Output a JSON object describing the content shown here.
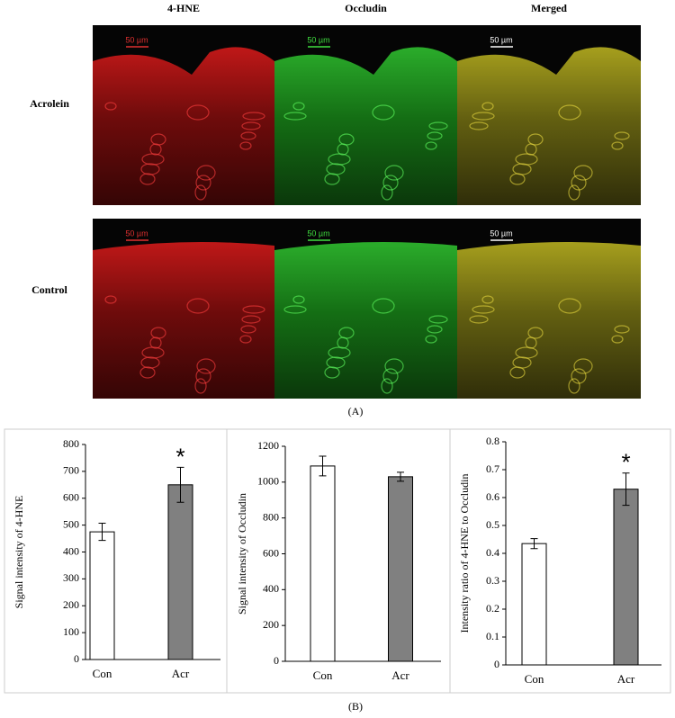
{
  "panel_a": {
    "columns": [
      "4-HNE",
      "Occludin",
      "Merged"
    ],
    "rows": [
      "Acrolein",
      "Control"
    ],
    "scale_bar": "50 µm",
    "label": "(A)"
  },
  "panel_b_label": "(B)",
  "chart_data": [
    {
      "type": "bar",
      "ylabel": "Signal intensity of 4-HNE",
      "categories": [
        "Con",
        "Acr"
      ],
      "values": [
        475,
        650
      ],
      "errors": [
        32,
        65
      ],
      "colors": [
        "#ffffff",
        "#808080"
      ],
      "ylim": [
        0,
        800
      ],
      "yticks": [
        0,
        100,
        200,
        300,
        400,
        500,
        600,
        700,
        800
      ],
      "annotations": [
        {
          "text": "*",
          "x": "Acr"
        }
      ]
    },
    {
      "type": "bar",
      "ylabel": "Signal intensity of Occludin",
      "categories": [
        "Con",
        "Acr"
      ],
      "values": [
        1090,
        1030
      ],
      "errors": [
        55,
        25
      ],
      "colors": [
        "#ffffff",
        "#808080"
      ],
      "ylim": [
        0,
        1200
      ],
      "yticks": [
        0,
        200,
        400,
        600,
        800,
        1000,
        1200
      ],
      "annotations": []
    },
    {
      "type": "bar",
      "ylabel": "Intensity ratio of 4-HNE to Occludin",
      "categories": [
        "Con",
        "Acr"
      ],
      "values": [
        0.435,
        0.63
      ],
      "errors": [
        0.018,
        0.058
      ],
      "colors": [
        "#ffffff",
        "#808080"
      ],
      "ylim": [
        0,
        0.8
      ],
      "yticks": [
        0,
        0.1,
        0.2,
        0.3,
        0.4,
        0.5,
        0.6,
        0.7,
        0.8
      ],
      "annotations": [
        {
          "text": "*",
          "x": "Acr"
        }
      ]
    }
  ]
}
